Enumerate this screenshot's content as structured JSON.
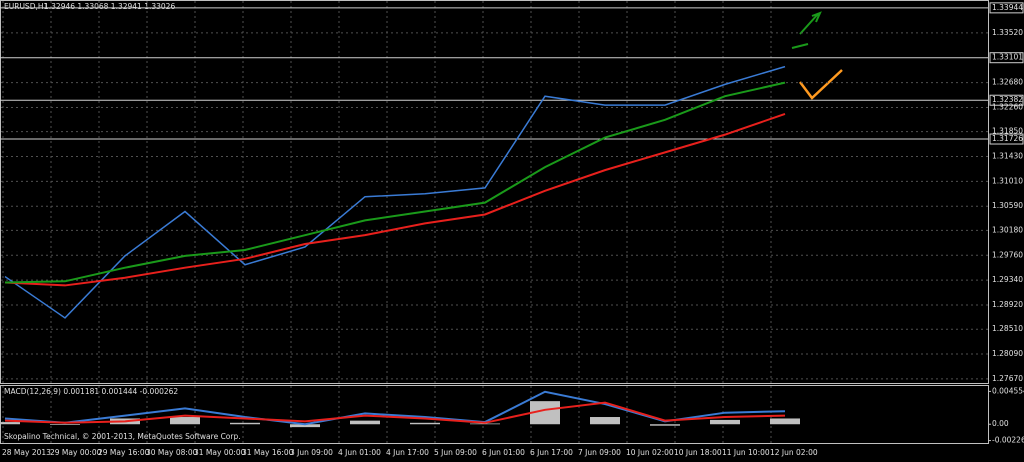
{
  "header": {
    "title": "EURUSD,H1",
    "quotes": "1.32946 1.33068 1.32941 1.33026"
  },
  "chart_data": [
    {
      "type": "line",
      "ylim": [
        1.276,
        1.3406
      ],
      "yticks": [
        1.33944,
        {
          "value": 1.3352,
          "label": "1.33520"
        },
        1.33101,
        {
          "value": 1.3268,
          "label": "1.32680"
        },
        1.32382,
        {
          "value": 1.3226,
          "label": "1.32260"
        },
        {
          "value": 1.3185,
          "label": "1.31850"
        },
        1.31726,
        {
          "value": 1.3143,
          "label": "1.31430"
        },
        {
          "value": 1.3101,
          "label": "1.31010"
        },
        {
          "value": 1.3059,
          "label": "1.30590"
        },
        {
          "value": 1.3018,
          "label": "1.30180"
        },
        {
          "value": 1.2976,
          "label": "1.29760"
        },
        {
          "value": 1.2934,
          "label": "1.29340"
        },
        {
          "value": 1.2892,
          "label": "1.28920"
        },
        {
          "value": 1.2851,
          "label": "1.28510"
        },
        {
          "value": 1.2809,
          "label": "1.28090"
        },
        {
          "value": 1.2767,
          "label": "1.27670"
        }
      ],
      "levels": [
        1.33944,
        1.33101,
        1.32382,
        1.31726
      ],
      "grid": true,
      "series": [
        {
          "color": "#3a7bd5",
          "values": [
            1.294,
            1.287,
            1.2975,
            1.305,
            1.296,
            1.299,
            1.3075,
            1.308,
            1.309,
            1.3245,
            1.323,
            1.323,
            1.3265,
            1.3295
          ]
        },
        {
          "color": "#e8201c",
          "values": [
            1.293,
            1.2925,
            1.2938,
            1.2955,
            1.297,
            1.2995,
            1.301,
            1.303,
            1.3045,
            1.3085,
            1.312,
            1.315,
            1.318,
            1.3215
          ]
        },
        {
          "color": "#1a9a1a",
          "values": [
            1.293,
            1.2932,
            1.2955,
            1.2975,
            1.2985,
            1.301,
            1.3035,
            1.305,
            1.3065,
            1.3125,
            1.3175,
            1.3205,
            1.3245,
            1.3268
          ]
        }
      ]
    },
    {
      "type": "line",
      "title": "MACD(12,26,9) 0.001181 0.001444 -0.000262",
      "ylim": [
        -0.0026,
        0.0053
      ],
      "yticks": [
        0.004554,
        {
          "value": 0,
          "label": "0.00"
        },
        -0.002262
      ],
      "series": [
        {
          "type": "bar",
          "color": "#c0c0c0",
          "values": [
            0.0003,
            -0.0001,
            0.0008,
            0.001,
            0.0002,
            -0.0004,
            0.0005,
            0.0002,
            0.0001,
            0.0032,
            0.001,
            -0.0002,
            0.0006,
            0.0008
          ]
        },
        {
          "color": "#3a7bd5",
          "values": [
            0.0008,
            0.0002,
            0.0012,
            0.0022,
            0.001,
            0.0,
            0.0015,
            0.001,
            0.0003,
            0.0045,
            0.0028,
            0.0004,
            0.0016,
            0.0018
          ]
        },
        {
          "color": "#e8201c",
          "values": [
            0.0005,
            0.0002,
            0.0004,
            0.0012,
            0.0008,
            0.0004,
            0.0012,
            0.0008,
            0.0002,
            0.002,
            0.003,
            0.0005,
            0.001,
            0.0012
          ]
        }
      ]
    }
  ],
  "time_labels": [
    "28 May 2013",
    "29 May 00:00",
    "29 May 16:00",
    "30 May 08:00",
    "31 May 00:00",
    "31 May 16:00",
    "3 Jun 09:00",
    "4 Jun 01:00",
    "4 Jun 17:00",
    "5 Jun 09:00",
    "6 Jun 01:00",
    "6 Jun 17:00",
    "7 Jun 09:00",
    "10 Jun 02:00",
    "10 Jun 18:00",
    "11 Jun 10:00",
    "12 Jun 02:00"
  ],
  "footer": {
    "copyright": "Skopalino Technical, © 2001-2013, MetaQuotes Software Corp."
  }
}
